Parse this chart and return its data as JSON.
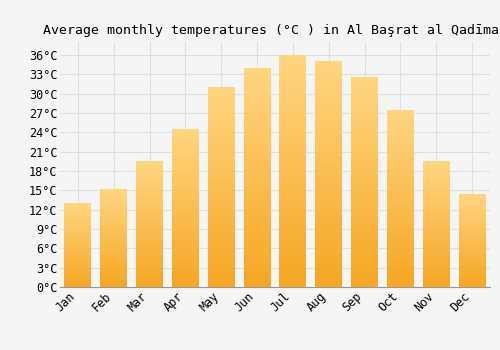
{
  "title": "Average monthly temperatures (°C ) in Al Başrat al Qadīmah",
  "months": [
    "Jan",
    "Feb",
    "Mar",
    "Apr",
    "May",
    "Jun",
    "Jul",
    "Aug",
    "Sep",
    "Oct",
    "Nov",
    "Dec"
  ],
  "values": [
    13.0,
    15.2,
    19.5,
    24.5,
    31.0,
    34.0,
    36.0,
    35.0,
    32.5,
    27.5,
    19.5,
    14.5
  ],
  "bar_color_bottom": "#F5A623",
  "bar_color_top": "#FFD580",
  "ylim": [
    0,
    38
  ],
  "yticks": [
    0,
    3,
    6,
    9,
    12,
    15,
    18,
    21,
    24,
    27,
    30,
    33,
    36
  ],
  "ytick_labels": [
    "0°C",
    "3°C",
    "6°C",
    "9°C",
    "12°C",
    "15°C",
    "18°C",
    "21°C",
    "24°C",
    "27°C",
    "30°C",
    "33°C",
    "36°C"
  ],
  "background_color": "#f5f5f5",
  "grid_color": "#e0e0e0",
  "title_fontsize": 9.5,
  "tick_fontsize": 8.5,
  "font_family": "monospace",
  "bar_width": 0.75
}
